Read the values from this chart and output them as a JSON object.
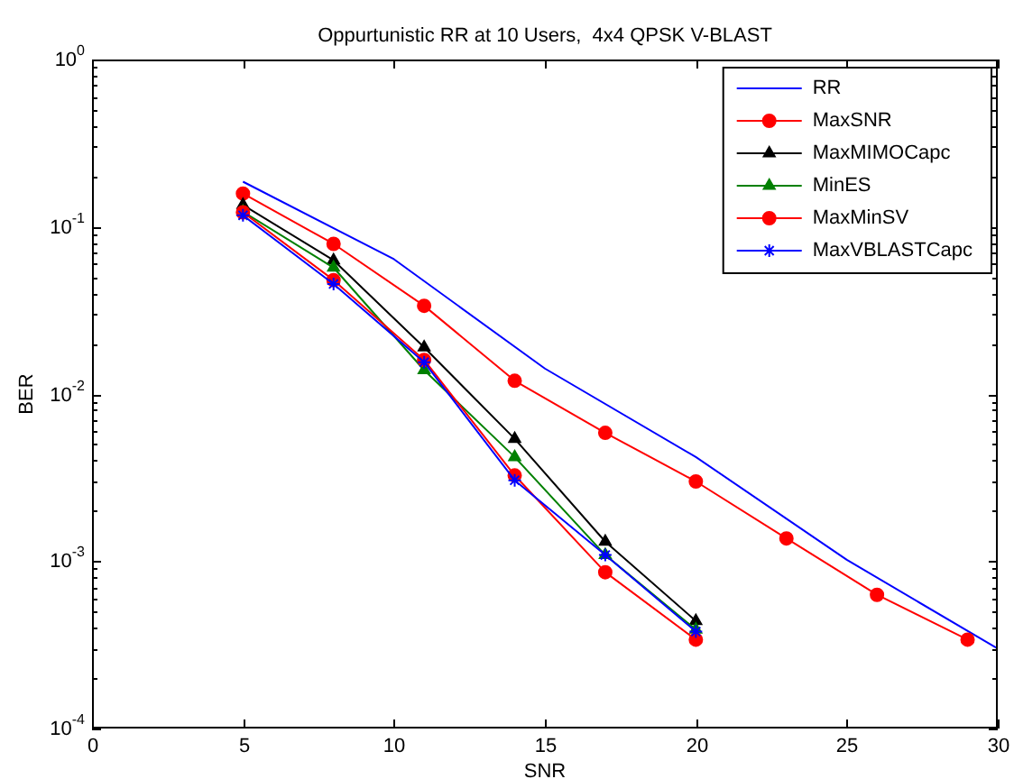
{
  "chart_data": {
    "type": "line",
    "title": "Oppurtunistic RR at 10 Users,  4x4 QPSK V-BLAST",
    "xlabel": "SNR",
    "ylabel": "BER",
    "log": "y",
    "grid": false,
    "legend": "top right",
    "xlim": [
      0,
      30
    ],
    "xticks": [
      0,
      5,
      10,
      15,
      20,
      25,
      30
    ],
    "ylim": [
      0.0001,
      1
    ],
    "yticks": [
      {
        "value": 0.0001,
        "label": "10$^{-4}$"
      },
      {
        "value": 0.0002,
        "label": null
      },
      {
        "value": 0.0003,
        "label": null
      },
      {
        "value": 0.0004,
        "label": null
      },
      {
        "value": 0.0005,
        "label": null
      },
      {
        "value": 0.0006,
        "label": null
      },
      {
        "value": 0.0007,
        "label": null
      },
      {
        "value": 0.0008,
        "label": null
      },
      {
        "value": 0.0009,
        "label": null
      },
      {
        "value": 0.001,
        "label": "10$^{-3}$"
      },
      {
        "value": 0.002,
        "label": null
      },
      {
        "value": 0.003,
        "label": null
      },
      {
        "value": 0.004,
        "label": null
      },
      {
        "value": 0.005,
        "label": null
      },
      {
        "value": 0.006,
        "label": null
      },
      {
        "value": 0.007,
        "label": null
      },
      {
        "value": 0.008,
        "label": null
      },
      {
        "value": 0.009,
        "label": null
      },
      {
        "value": 0.01,
        "label": "10$^{-2}$"
      },
      {
        "value": 0.02,
        "label": null
      },
      {
        "value": 0.03,
        "label": null
      },
      {
        "value": 0.04,
        "label": null
      },
      {
        "value": 0.05,
        "label": null
      },
      {
        "value": 0.06,
        "label": null
      },
      {
        "value": 0.07,
        "label": null
      },
      {
        "value": 0.08,
        "label": null
      },
      {
        "value": 0.09,
        "label": null
      },
      {
        "value": 0.1,
        "label": "10$^{-1}$"
      },
      {
        "value": 0.2,
        "label": null
      },
      {
        "value": 0.3,
        "label": null
      },
      {
        "value": 0.4,
        "label": null
      },
      {
        "value": 0.5,
        "label": null
      },
      {
        "value": 0.6,
        "label": null
      },
      {
        "value": 0.7,
        "label": null
      },
      {
        "value": 0.8,
        "label": null
      },
      {
        "value": 0.9,
        "label": null
      },
      {
        "value": 1,
        "label": "10$^{0}$"
      }
    ],
    "series": [
      {
        "name": "RR",
        "color": "#0000ff",
        "marker": "none",
        "x": [
          5,
          10,
          15,
          20,
          25,
          30
        ],
        "values": [
          0.186,
          0.064,
          0.0142,
          0.0042,
          0.00102,
          0.0003
        ]
      },
      {
        "name": "MaxSNR",
        "color": "#ff0000",
        "marker": "circle",
        "x": [
          5,
          8,
          11,
          14,
          17,
          20,
          23,
          26,
          29
        ],
        "values": [
          0.158,
          0.079,
          0.0337,
          0.012,
          0.00586,
          0.003,
          0.00137,
          0.00063,
          0.00034
        ]
      },
      {
        "name": "MaxMIMOCapc",
        "color": "#000000",
        "marker": "triangle",
        "x": [
          5,
          8,
          11,
          14,
          17,
          20
        ],
        "values": [
          0.135,
          0.063,
          0.019,
          0.0054,
          0.00131,
          0.00044
        ]
      },
      {
        "name": "MinES",
        "color": "#008000",
        "marker": "triangle",
        "x": [
          5,
          8,
          11,
          14,
          17,
          20
        ],
        "values": [
          0.123,
          0.057,
          0.0139,
          0.0042,
          0.00109,
          0.00039
        ]
      },
      {
        "name": "MaxMinSV",
        "color": "#ff0000",
        "marker": "circle",
        "x": [
          5,
          8,
          11,
          14,
          17,
          20
        ],
        "values": [
          0.122,
          0.048,
          0.016,
          0.00326,
          0.00086,
          0.00034
        ]
      },
      {
        "name": "MaxVBLASTCapc",
        "color": "#0000ff",
        "marker": "cross",
        "x": [
          5,
          8,
          11,
          14,
          17,
          20
        ],
        "values": [
          0.117,
          0.0455,
          0.0155,
          0.00305,
          0.00109,
          0.00038
        ]
      }
    ]
  }
}
